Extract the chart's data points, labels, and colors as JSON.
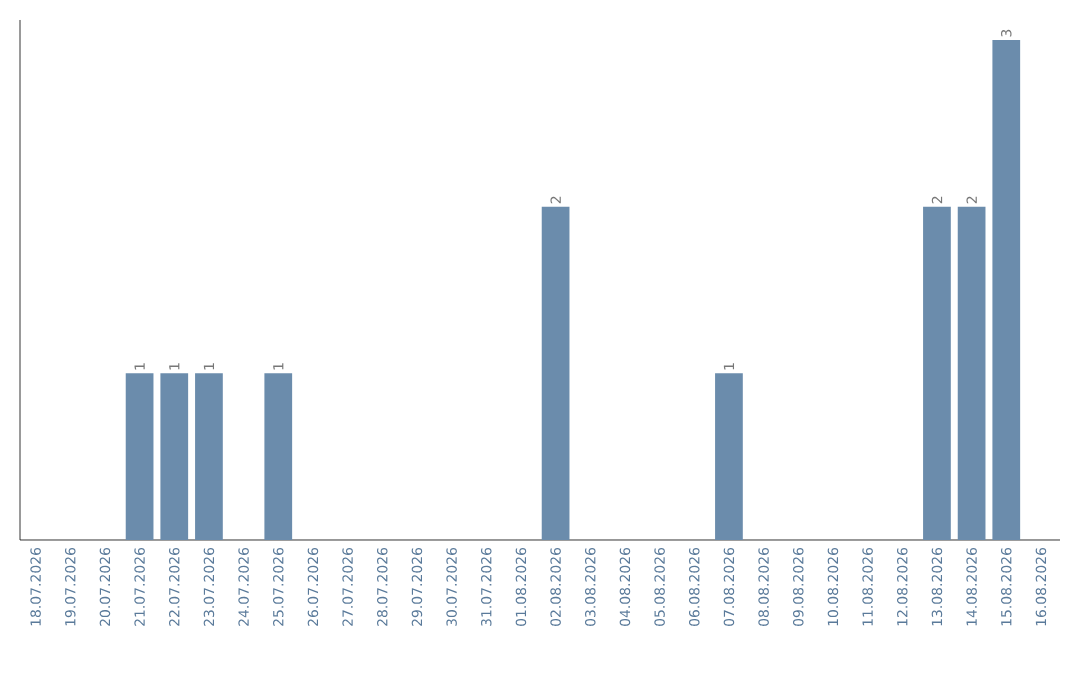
{
  "chart_data": {
    "type": "bar",
    "categories": [
      "18.07.2026",
      "19.07.2026",
      "20.07.2026",
      "21.07.2026",
      "22.07.2026",
      "23.07.2026",
      "24.07.2026",
      "25.07.2026",
      "26.07.2026",
      "27.07.2026",
      "28.07.2026",
      "29.07.2026",
      "30.07.2026",
      "31.07.2026",
      "01.08.2026",
      "02.08.2026",
      "03.08.2026",
      "04.08.2026",
      "05.08.2026",
      "06.08.2026",
      "07.08.2026",
      "08.08.2026",
      "09.08.2026",
      "10.08.2026",
      "11.08.2026",
      "12.08.2026",
      "13.08.2026",
      "14.08.2026",
      "15.08.2026",
      "16.08.2026"
    ],
    "values": [
      0,
      0,
      0,
      1,
      1,
      1,
      0,
      1,
      0,
      0,
      0,
      0,
      0,
      0,
      0,
      2,
      0,
      0,
      0,
      0,
      1,
      0,
      0,
      0,
      0,
      0,
      2,
      2,
      3,
      0
    ],
    "value_labels": [
      null,
      null,
      null,
      "1",
      "1",
      "1",
      null,
      "1",
      null,
      null,
      null,
      null,
      null,
      null,
      null,
      "2",
      null,
      null,
      null,
      null,
      "1",
      null,
      null,
      null,
      null,
      null,
      "2",
      "2",
      "3",
      null
    ],
    "color": "#6b8cac"
  }
}
